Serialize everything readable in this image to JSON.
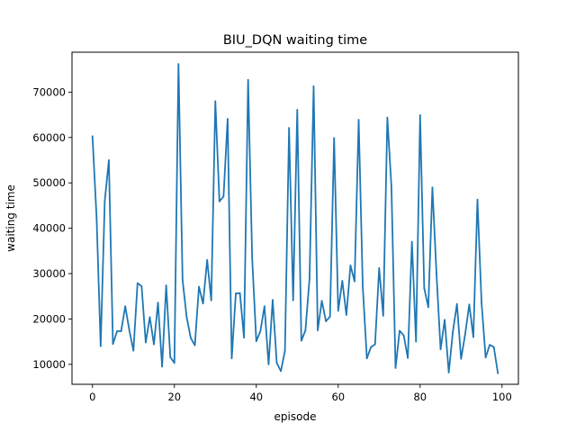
{
  "chart_data": {
    "type": "line",
    "title": "BIU_DQN waiting time",
    "xlabel": "episode",
    "ylabel": "waiting time",
    "xlim": [
      -5,
      104
    ],
    "ylim": [
      5600,
      78800
    ],
    "xticks": [
      0,
      20,
      40,
      60,
      80,
      100
    ],
    "yticks": [
      10000,
      20000,
      30000,
      40000,
      50000,
      60000,
      70000
    ],
    "grid": false,
    "legend": "none",
    "series": [
      {
        "color": "#1f77b4",
        "x": [
          0,
          1,
          2,
          3,
          4,
          5,
          6,
          7,
          8,
          9,
          10,
          11,
          12,
          13,
          14,
          15,
          16,
          17,
          18,
          19,
          20,
          21,
          22,
          23,
          24,
          25,
          26,
          27,
          28,
          29,
          30,
          31,
          32,
          33,
          34,
          35,
          36,
          37,
          38,
          39,
          40,
          41,
          42,
          43,
          44,
          45,
          46,
          47,
          48,
          49,
          50,
          51,
          52,
          53,
          54,
          55,
          56,
          57,
          58,
          59,
          60,
          61,
          62,
          63,
          64,
          65,
          66,
          67,
          68,
          69,
          70,
          71,
          72,
          73,
          74,
          75,
          76,
          77,
          78,
          79,
          80,
          81,
          82,
          83,
          84,
          85,
          86,
          87,
          88,
          89,
          90,
          91,
          92,
          93,
          94,
          95,
          96,
          97,
          98,
          99
        ],
        "values": [
          60300,
          42500,
          14000,
          46000,
          55000,
          14500,
          17300,
          17300,
          22800,
          17500,
          13000,
          27900,
          27200,
          14800,
          20400,
          14400,
          23600,
          9500,
          27400,
          11600,
          10300,
          76200,
          28600,
          20400,
          15800,
          14200,
          27100,
          23400,
          33000,
          24100,
          68000,
          45900,
          47000,
          64100,
          11300,
          25600,
          25700,
          15900,
          72700,
          33200,
          15100,
          17300,
          22800,
          10000,
          24200,
          10300,
          8500,
          13000,
          62100,
          24100,
          66100,
          15200,
          17500,
          28900,
          71300,
          17500,
          24000,
          19500,
          20500,
          59900,
          21800,
          28400,
          20900,
          31800,
          28300,
          63900,
          27100,
          11300,
          13800,
          14400,
          31200,
          20700,
          64400,
          49100,
          9200,
          17400,
          16400,
          11400,
          37000,
          15000,
          64900,
          26800,
          22600,
          49000,
          30000,
          13300,
          19800,
          8200,
          17200,
          23300,
          11200,
          16600,
          23200,
          16000,
          46300,
          23600,
          11500,
          14300,
          13800,
          8000
        ]
      }
    ]
  }
}
